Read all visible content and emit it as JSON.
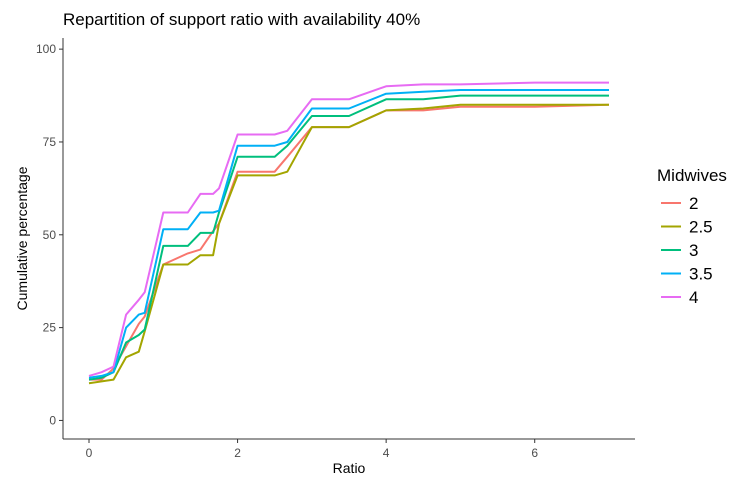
{
  "chart_data": {
    "type": "line",
    "title": "Repartition of support ratio with availability 40%",
    "xlabel": "Ratio",
    "ylabel": "Cumulative percentage",
    "xlim": [
      -0.35,
      7.35
    ],
    "ylim": [
      -5,
      103
    ],
    "x_ticks": [
      0,
      2,
      4,
      6
    ],
    "y_ticks": [
      0,
      25,
      50,
      75,
      100
    ],
    "grid": false,
    "legend": {
      "title": "Midwives",
      "position": "right"
    },
    "x": [
      0,
      0.17,
      0.33,
      0.5,
      0.67,
      0.75,
      1.0,
      1.33,
      1.5,
      1.67,
      1.75,
      2.0,
      2.5,
      2.67,
      3.0,
      3.5,
      4.0,
      4.5,
      5.0,
      6.0,
      7.0
    ],
    "series": [
      {
        "name": "2",
        "color": "#F8766D",
        "values": [
          11,
          11,
          14,
          20,
          26,
          28,
          42,
          45,
          46,
          51,
          53,
          67,
          67,
          71,
          79,
          79,
          83.5,
          83.5,
          84.5,
          84.5,
          85
        ]
      },
      {
        "name": "2.5",
        "color": "#A3A500",
        "values": [
          10,
          10.5,
          11,
          17,
          18.5,
          24,
          42,
          42,
          44.5,
          44.5,
          53,
          66,
          66,
          67,
          79,
          79,
          83.5,
          84,
          85,
          85,
          85
        ]
      },
      {
        "name": "3",
        "color": "#00BF7D",
        "values": [
          11,
          11.5,
          13,
          21,
          23,
          24.5,
          47,
          47,
          50.5,
          50.5,
          56,
          71,
          71,
          74,
          82,
          82,
          86.5,
          86.5,
          87.5,
          87.5,
          87.5
        ]
      },
      {
        "name": "3.5",
        "color": "#00B0F6",
        "values": [
          11.5,
          12,
          13,
          25,
          28.5,
          29,
          51.5,
          51.5,
          56,
          56,
          56.5,
          74,
          74,
          75,
          84,
          84,
          88,
          88.5,
          89,
          89,
          89
        ]
      },
      {
        "name": "4",
        "color": "#E76BF3",
        "values": [
          12,
          13,
          14.5,
          28.5,
          32.5,
          34.5,
          56,
          56,
          61,
          61,
          62.5,
          77,
          77,
          78,
          86.5,
          86.5,
          90,
          90.5,
          90.5,
          91,
          91
        ]
      }
    ]
  }
}
